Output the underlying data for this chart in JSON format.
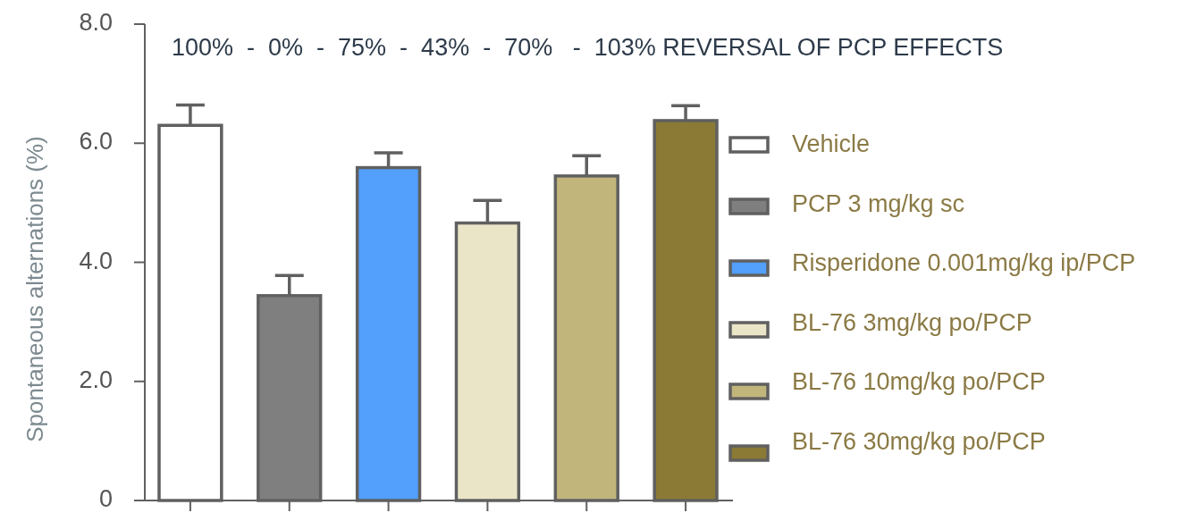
{
  "chart_data": {
    "type": "bar",
    "ylabel": "Spontaneous alternations (%)",
    "categories": [
      null,
      null,
      null,
      null,
      null,
      null
    ],
    "series": [
      {
        "name": "Vehicle",
        "color": "#ffffff",
        "values": [
          6.3,
          null,
          null,
          null,
          null,
          null
        ],
        "errors": [
          [
            6.3,
            6.64
          ],
          null,
          null,
          null,
          null,
          null
        ]
      },
      {
        "name": "PCP 3 mg/kg sc",
        "color": "#7f7f7f",
        "values": [
          null,
          3.44,
          null,
          null,
          null,
          null
        ],
        "errors": [
          null,
          [
            3.44,
            3.78
          ],
          null,
          null,
          null,
          null
        ]
      },
      {
        "name": "Risperidone 0.001mg/kg ip/PCP",
        "color": "#529ffc",
        "values": [
          null,
          null,
          5.59,
          null,
          null,
          null
        ],
        "errors": [
          null,
          null,
          [
            5.59,
            5.84
          ],
          null,
          null,
          null
        ]
      },
      {
        "name": "BL-76 3mg/kg po/PCP",
        "color": "#ebe5c8",
        "values": [
          null,
          null,
          null,
          4.66,
          null,
          null
        ],
        "errors": [
          null,
          null,
          null,
          [
            4.66,
            5.04
          ],
          null,
          null
        ]
      },
      {
        "name": "BL-76 10mg/kg po/PCP",
        "color": "#c1b57c",
        "values": [
          null,
          null,
          null,
          null,
          5.45,
          null
        ],
        "errors": [
          null,
          null,
          null,
          null,
          [
            5.45,
            5.79
          ],
          null
        ]
      },
      {
        "name": "BL-76 30mg/kg po/PCP",
        "color": "#8b7a35",
        "values": [
          null,
          null,
          null,
          null,
          null,
          6.38
        ],
        "errors": [
          null,
          null,
          null,
          null,
          null,
          [
            6.38,
            6.63
          ]
        ]
      }
    ],
    "ylim": [
      0,
      8
    ],
    "yticks": [
      0,
      {
        "value": 2,
        "label": "2.0"
      },
      {
        "value": 4,
        "label": "4.0"
      },
      {
        "value": 6,
        "label": "6.0"
      },
      {
        "value": 8,
        "label": "8.0"
      }
    ],
    "tick_labels": "y",
    "legend": "right",
    "grid": false,
    "annotations": [
      "100%  -  0%  -  75%  -  43%  -  70%   -  103% REVERSAL OF PCP EFFECTS"
    ]
  }
}
